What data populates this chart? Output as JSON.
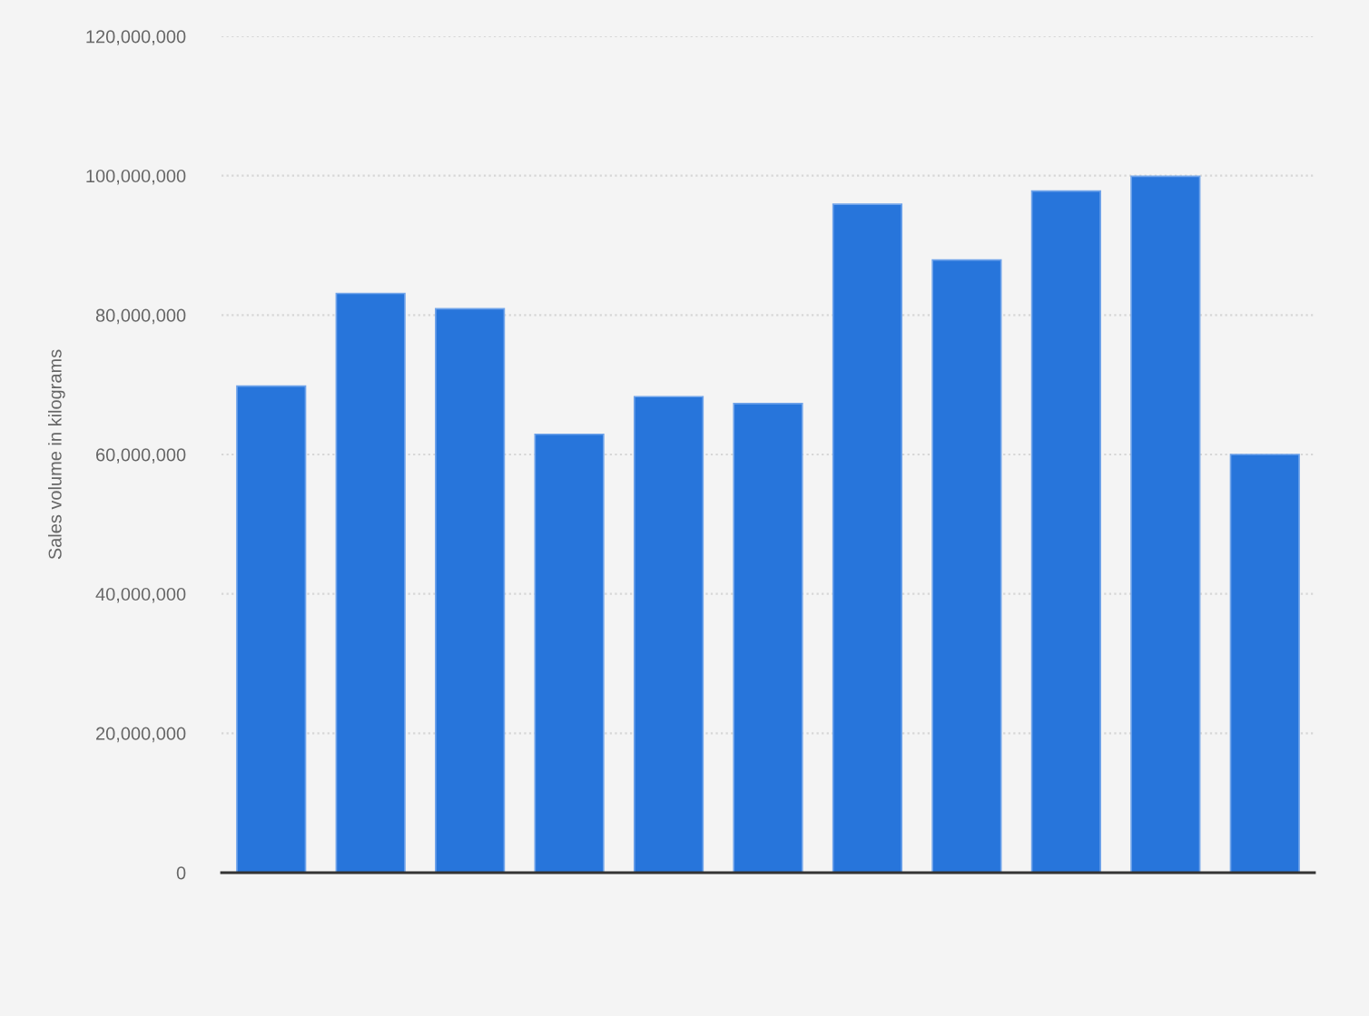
{
  "chart_data": {
    "type": "bar",
    "ylabel": "Sales volume in kilograms",
    "categories": [
      null,
      null,
      null,
      null,
      null,
      null,
      null,
      null,
      null,
      null,
      null
    ],
    "values": [
      69800000.0,
      83100000.0,
      80900000.0,
      62900000.0,
      68300000.0,
      67300000.0,
      95900000.0,
      87900000.0,
      97800000.0,
      99900000.0,
      60000000.0
    ],
    "color": "#2775db",
    "ylim": [
      0,
      120000000
    ],
    "yticks": [
      0,
      {
        "value": 20000000,
        "label": "20,000,000"
      },
      {
        "value": 40000000,
        "label": "40,000,000"
      },
      {
        "value": 60000000,
        "label": "60,000,000"
      },
      {
        "value": 80000000,
        "label": "80,000,000"
      },
      {
        "value": 100000000,
        "label": "100,000,000"
      },
      {
        "value": 120000000,
        "label": "120,000,000"
      }
    ],
    "grid": "y"
  }
}
